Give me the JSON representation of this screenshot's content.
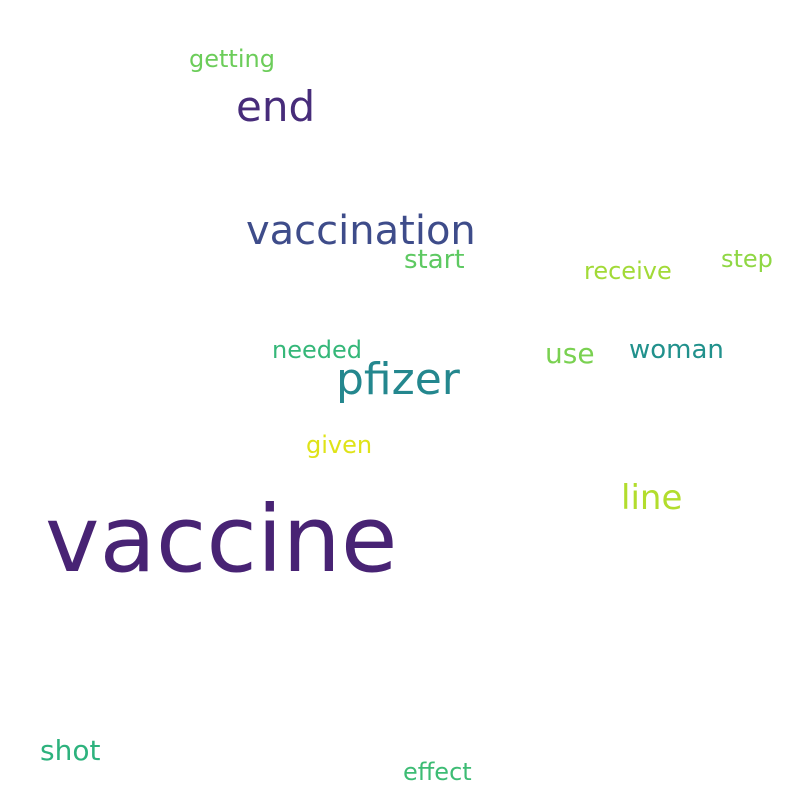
{
  "words": {
    "vaccine": "vaccine",
    "vaccination": "vaccination",
    "end": "end",
    "pfizer": "pfizer",
    "line": "line",
    "shot": "shot",
    "use": "use",
    "woman": "woman",
    "needed": "needed",
    "start": "start",
    "step": "step",
    "receive": "receive",
    "getting": "getting",
    "given": "given",
    "effect": "effect"
  },
  "colors": {
    "background": "#ffffff",
    "palette": [
      "#482374",
      "#3e4c8a",
      "#472c7a",
      "#24878e",
      "#b2dd2d",
      "#2db27d",
      "#7ad151",
      "#21918c",
      "#35b779",
      "#5ec962",
      "#8fd744",
      "#a2da37",
      "#6ccd5a",
      "#dfe318",
      "#3dbc74"
    ]
  }
}
